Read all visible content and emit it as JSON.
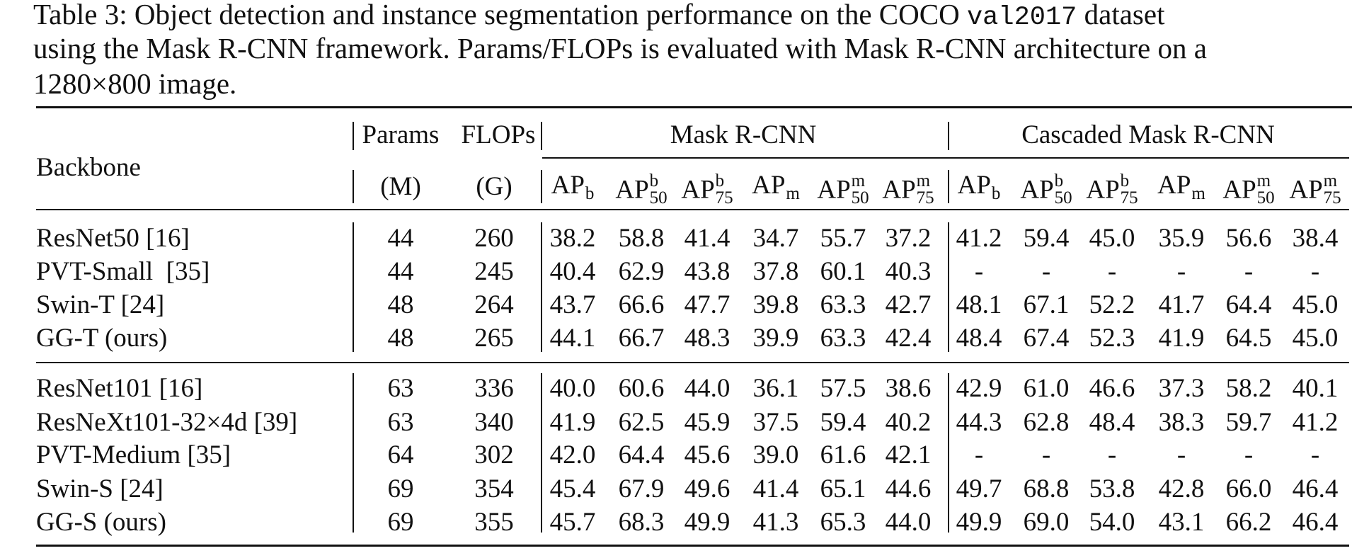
{
  "caption": {
    "lines": [
      [
        "Table 3: Object detection and instance segmentation performance on the COCO ",
        {
          "code": "val2017"
        },
        " dataset"
      ],
      [
        "using the Mask R-CNN framework. Params/FLOPs is evaluated with Mask R-CNN architecture on a"
      ],
      [
        "1280×800 image."
      ]
    ]
  },
  "table": {
    "header": {
      "backbone": "Backbone",
      "params": {
        "top": "Params",
        "unit": "(M)"
      },
      "flops": {
        "top": "FLOPs",
        "unit": "(G)"
      },
      "groups": [
        "Mask R-CNN",
        "Cascaded Mask R-CNN"
      ],
      "metrics": [
        {
          "base": "AP",
          "sup": "b"
        },
        {
          "base": "AP",
          "sup": "b",
          "sub": "50"
        },
        {
          "base": "AP",
          "sup": "b",
          "sub": "75"
        },
        {
          "base": "AP",
          "sup": "m"
        },
        {
          "base": "AP",
          "sup": "m",
          "sub": "50"
        },
        {
          "base": "AP",
          "sup": "m",
          "sub": "75"
        }
      ]
    },
    "blocks": [
      [
        {
          "backbone": "ResNet50 [16]",
          "params": "44",
          "flops": "260",
          "mask": [
            "38.2",
            "58.8",
            "41.4",
            "34.7",
            "55.7",
            "37.2"
          ],
          "cascade": [
            "41.2",
            "59.4",
            "45.0",
            "35.9",
            "56.6",
            "38.4"
          ]
        },
        {
          "backbone": "PVT-Small  [35]",
          "params": "44",
          "flops": "245",
          "mask": [
            "40.4",
            "62.9",
            "43.8",
            "37.8",
            "60.1",
            "40.3"
          ],
          "cascade": [
            "-",
            "-",
            "-",
            "-",
            "-",
            "-"
          ]
        },
        {
          "backbone": "Swin-T [24]",
          "params": "48",
          "flops": "264",
          "mask": [
            "43.7",
            "66.6",
            "47.7",
            "39.8",
            "63.3",
            "42.7"
          ],
          "cascade": [
            "48.1",
            "67.1",
            "52.2",
            "41.7",
            "64.4",
            "45.0"
          ]
        },
        {
          "backbone": "GG-T (ours)",
          "params": "48",
          "flops": "265",
          "mask": [
            "44.1",
            "66.7",
            "48.3",
            "39.9",
            "63.3",
            "42.4"
          ],
          "cascade": [
            "48.4",
            "67.4",
            "52.3",
            "41.9",
            "64.5",
            "45.0"
          ]
        }
      ],
      [
        {
          "backbone": "ResNet101 [16]",
          "params": "63",
          "flops": "336",
          "mask": [
            "40.0",
            "60.6",
            "44.0",
            "36.1",
            "57.5",
            "38.6"
          ],
          "cascade": [
            "42.9",
            "61.0",
            "46.6",
            "37.3",
            "58.2",
            "40.1"
          ]
        },
        {
          "backbone": "ResNeXt101-32×4d [39]",
          "params": "63",
          "flops": "340",
          "mask": [
            "41.9",
            "62.5",
            "45.9",
            "37.5",
            "59.4",
            "40.2"
          ],
          "cascade": [
            "44.3",
            "62.8",
            "48.4",
            "38.3",
            "59.7",
            "41.2"
          ]
        },
        {
          "backbone": "PVT-Medium [35]",
          "params": "64",
          "flops": "302",
          "mask": [
            "42.0",
            "64.4",
            "45.6",
            "39.0",
            "61.6",
            "42.1"
          ],
          "cascade": [
            "-",
            "-",
            "-",
            "-",
            "-",
            "-"
          ]
        },
        {
          "backbone": "Swin-S [24]",
          "params": "69",
          "flops": "354",
          "mask": [
            "45.4",
            "67.9",
            "49.6",
            "41.4",
            "65.1",
            "44.6"
          ],
          "cascade": [
            "49.7",
            "68.8",
            "53.8",
            "42.8",
            "66.0",
            "46.4"
          ]
        },
        {
          "backbone": "GG-S (ours)",
          "params": "69",
          "flops": "355",
          "mask": [
            "45.7",
            "68.3",
            "49.9",
            "41.3",
            "65.3",
            "44.0"
          ],
          "cascade": [
            "49.9",
            "69.0",
            "54.0",
            "43.1",
            "66.2",
            "46.4"
          ]
        }
      ]
    ]
  }
}
